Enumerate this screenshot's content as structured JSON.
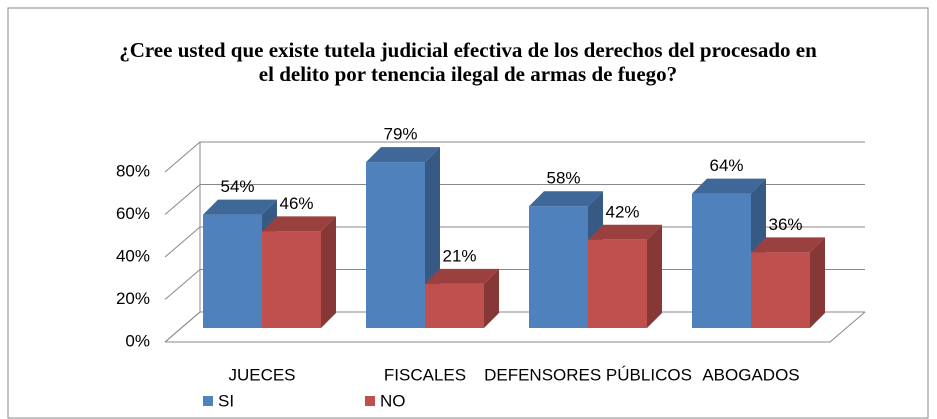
{
  "chart_data": {
    "type": "bar3d",
    "title": "¿Cree usted que existe tutela judicial efectiva de los derechos del procesado en el delito por tenencia ilegal de armas de fuego?",
    "categories": [
      "JUECES",
      "FISCALES",
      "DEFENSORES PÚBLICOS",
      "ABOGADOS"
    ],
    "series": [
      {
        "name": "SI",
        "color": "#4f81bd",
        "values": [
          54,
          79,
          58,
          64
        ],
        "value_labels": [
          "54%",
          "79%",
          "58%",
          "64%"
        ]
      },
      {
        "name": "NO",
        "color": "#c0504d",
        "values": [
          46,
          21,
          42,
          36
        ],
        "value_labels": [
          "46%",
          "21%",
          "42%",
          "36%"
        ]
      }
    ],
    "ylim": [
      0,
      80
    ],
    "yticks": [
      {
        "value": 0,
        "label": "0%"
      },
      {
        "value": 20,
        "label": "20%"
      },
      {
        "value": 40,
        "label": "40%"
      },
      {
        "value": 60,
        "label": "60%"
      },
      {
        "value": 80,
        "label": "80%"
      }
    ],
    "grid": true,
    "legend": "bottom-left"
  }
}
